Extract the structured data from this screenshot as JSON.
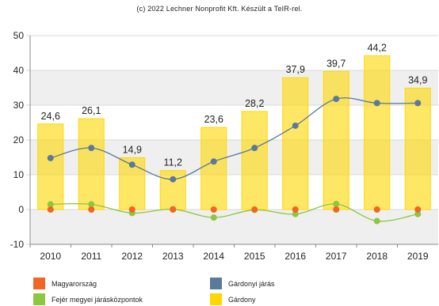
{
  "credit": "(c) 2022 Lechner Nonprofit Kft. Készült a TeIR-rel.",
  "chart_data": {
    "type": "bar",
    "x": [
      "2010",
      "2011",
      "2012",
      "2013",
      "2014",
      "2015",
      "2016",
      "2017",
      "2018",
      "2019"
    ],
    "ylim": [
      -10,
      50
    ],
    "yticks": [
      -10,
      0,
      10,
      20,
      30,
      40,
      50
    ],
    "grid": "horizontal bands",
    "legend_position": "bottom",
    "series": [
      {
        "name": "Gárdony",
        "type": "bar",
        "color": "#ffd700",
        "values": [
          24.6,
          26.1,
          14.9,
          11.2,
          23.6,
          28.2,
          37.9,
          39.7,
          44.2,
          34.9
        ],
        "labels": [
          "24,6",
          "26,1",
          "14,9",
          "11,2",
          "23,6",
          "28,2",
          "37,9",
          "39,7",
          "44,2",
          "34,9"
        ]
      },
      {
        "name": "Gárdonyi járás",
        "type": "line",
        "color": "#5b7a99",
        "values": [
          14.8,
          17.7,
          12.9,
          8.7,
          13.8,
          17.7,
          24.1,
          31.8,
          30.6,
          30.6
        ]
      },
      {
        "name": "Fejér megyei járásközpontok",
        "type": "line",
        "color": "#8dc63f",
        "values": [
          1.5,
          1.5,
          -1.0,
          0.1,
          -2.3,
          -0.1,
          -1.3,
          1.6,
          -3.3,
          -1.3
        ]
      },
      {
        "name": "Magyarország",
        "type": "line",
        "color": "#f26522",
        "values": [
          0,
          0,
          0,
          0,
          0,
          0,
          0,
          0,
          0,
          0
        ]
      }
    ]
  },
  "legend": [
    {
      "label": "Magyarország",
      "color": "#f26522"
    },
    {
      "label": "Gárdonyi járás",
      "color": "#5b7a99"
    },
    {
      "label": "Fejér megyei járásközpontok",
      "color": "#8dc63f"
    },
    {
      "label": "Gárdony",
      "color": "#ffd700"
    }
  ]
}
